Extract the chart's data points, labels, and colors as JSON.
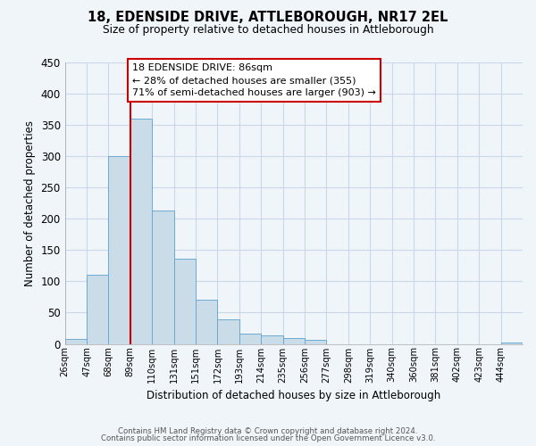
{
  "title": "18, EDENSIDE DRIVE, ATTLEBOROUGH, NR17 2EL",
  "subtitle": "Size of property relative to detached houses in Attleborough",
  "xlabel": "Distribution of detached houses by size in Attleborough",
  "ylabel": "Number of detached properties",
  "footer_line1": "Contains HM Land Registry data © Crown copyright and database right 2024.",
  "footer_line2": "Contains public sector information licensed under the Open Government Licence v3.0.",
  "bar_labels": [
    "26sqm",
    "47sqm",
    "68sqm",
    "89sqm",
    "110sqm",
    "131sqm",
    "151sqm",
    "172sqm",
    "193sqm",
    "214sqm",
    "235sqm",
    "256sqm",
    "277sqm",
    "298sqm",
    "319sqm",
    "340sqm",
    "360sqm",
    "381sqm",
    "402sqm",
    "423sqm",
    "444sqm"
  ],
  "bar_values": [
    8,
    110,
    300,
    360,
    213,
    136,
    70,
    39,
    16,
    13,
    10,
    6,
    0,
    0,
    0,
    0,
    0,
    0,
    0,
    0,
    2
  ],
  "bar_color": "#c9dce8",
  "bar_edge_color": "#6aaad4",
  "ylim": [
    0,
    450
  ],
  "yticks": [
    0,
    50,
    100,
    150,
    200,
    250,
    300,
    350,
    400,
    450
  ],
  "vline_color": "#cc0000",
  "annotation_line1": "18 EDENSIDE DRIVE: 86sqm",
  "annotation_line2": "← 28% of detached houses are smaller (355)",
  "annotation_line3": "71% of semi-detached houses are larger (903) →",
  "annotation_box_color": "#cc0000",
  "bin_width": 21,
  "background_color": "#f0f5fa",
  "grid_color": "#c8d8e8"
}
